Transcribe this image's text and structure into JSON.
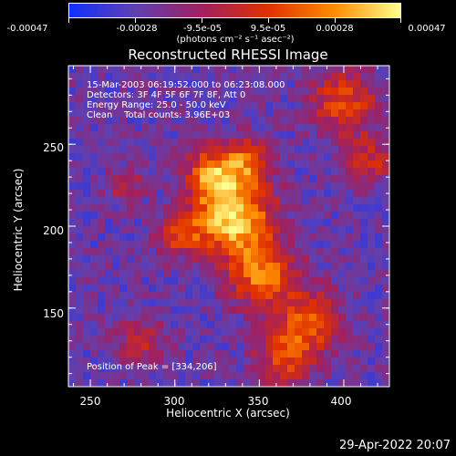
{
  "chart_data": {
    "type": "heatmap",
    "title": "Reconstructed RHESSI Image",
    "xlabel": "Heliocentric X (arcsec)",
    "ylabel": "Heliocentric Y (arcsec)",
    "xlim": [
      237,
      427
    ],
    "ylim": [
      102,
      298
    ],
    "x_ticks": [
      250,
      300,
      350,
      400
    ],
    "y_ticks": [
      150,
      200,
      250
    ],
    "colorbar": {
      "min": -0.00047,
      "max": 0.00047,
      "tick_values": [
        -0.00047,
        -0.00028,
        -9.5e-05,
        9.5e-05,
        0.00028,
        0.00047
      ],
      "tick_labels": [
        "-0.00047",
        "-0.00028",
        "-9.5e-05",
        "9.5e-05",
        "0.00028",
        "0.00047"
      ],
      "units": "(photons cm⁻² s⁻¹ asec⁻²)",
      "colors": [
        "#1030ff",
        "#6040b0",
        "#a02060",
        "#e03000",
        "#ff8c00",
        "#ffff90"
      ]
    },
    "annotations": [
      "15-Mar-2003 06:19:52.000 to 06:23:08.000",
      "Detectors: 3F 4F 5F 6F 7F 8F, Att 0",
      "Energy Range: 25.0 - 50.0 keV",
      "Clean    Total counts: 3.96E+03"
    ],
    "peak_label": "Position of Peak = [334,206]",
    "sources": [
      {
        "x": 334,
        "y": 206,
        "sigma": 16,
        "amp": 1.0
      },
      {
        "x": 322,
        "y": 232,
        "sigma": 11,
        "amp": 0.65
      },
      {
        "x": 342,
        "y": 240,
        "sigma": 10,
        "amp": 0.55
      },
      {
        "x": 303,
        "y": 195,
        "sigma": 9,
        "amp": 0.5
      },
      {
        "x": 352,
        "y": 170,
        "sigma": 14,
        "amp": 0.7
      },
      {
        "x": 380,
        "y": 142,
        "sigma": 12,
        "amp": 0.6
      },
      {
        "x": 365,
        "y": 120,
        "sigma": 12,
        "amp": 0.55
      },
      {
        "x": 400,
        "y": 275,
        "sigma": 14,
        "amp": 0.55
      },
      {
        "x": 415,
        "y": 240,
        "sigma": 10,
        "amp": 0.4
      },
      {
        "x": 280,
        "y": 130,
        "sigma": 10,
        "amp": 0.35
      },
      {
        "x": 270,
        "y": 225,
        "sigma": 8,
        "amp": 0.3
      }
    ]
  },
  "timestamp": "29-Apr-2022 20:07"
}
